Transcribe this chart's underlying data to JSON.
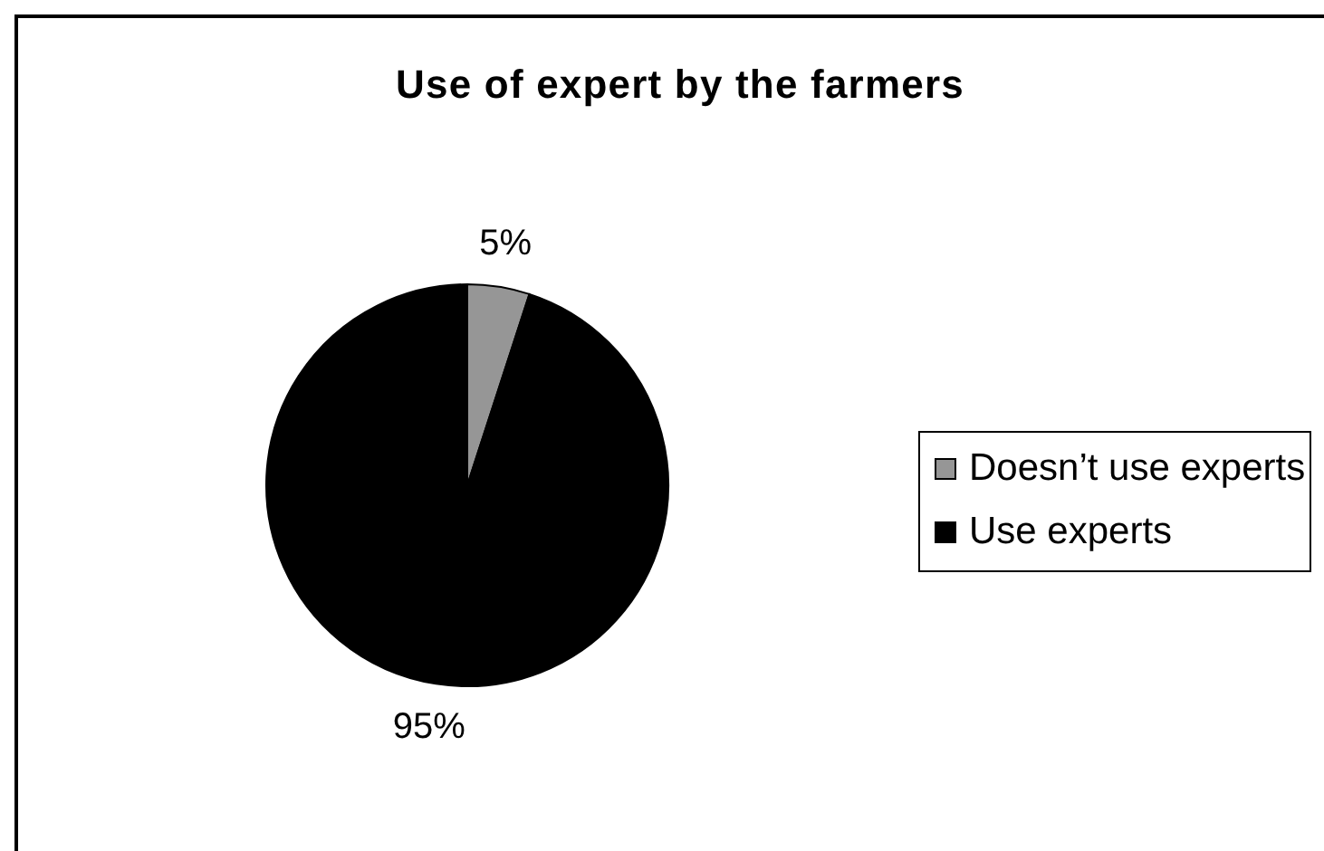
{
  "chart_data": {
    "type": "pie",
    "title": "Use of expert by the farmers",
    "categories": [
      "Doesn’t use experts",
      "Use experts"
    ],
    "values": [
      5,
      95
    ],
    "colors": [
      "#969696",
      "#000000"
    ],
    "value_labels": [
      "5%",
      "95%"
    ],
    "legend": "right"
  }
}
